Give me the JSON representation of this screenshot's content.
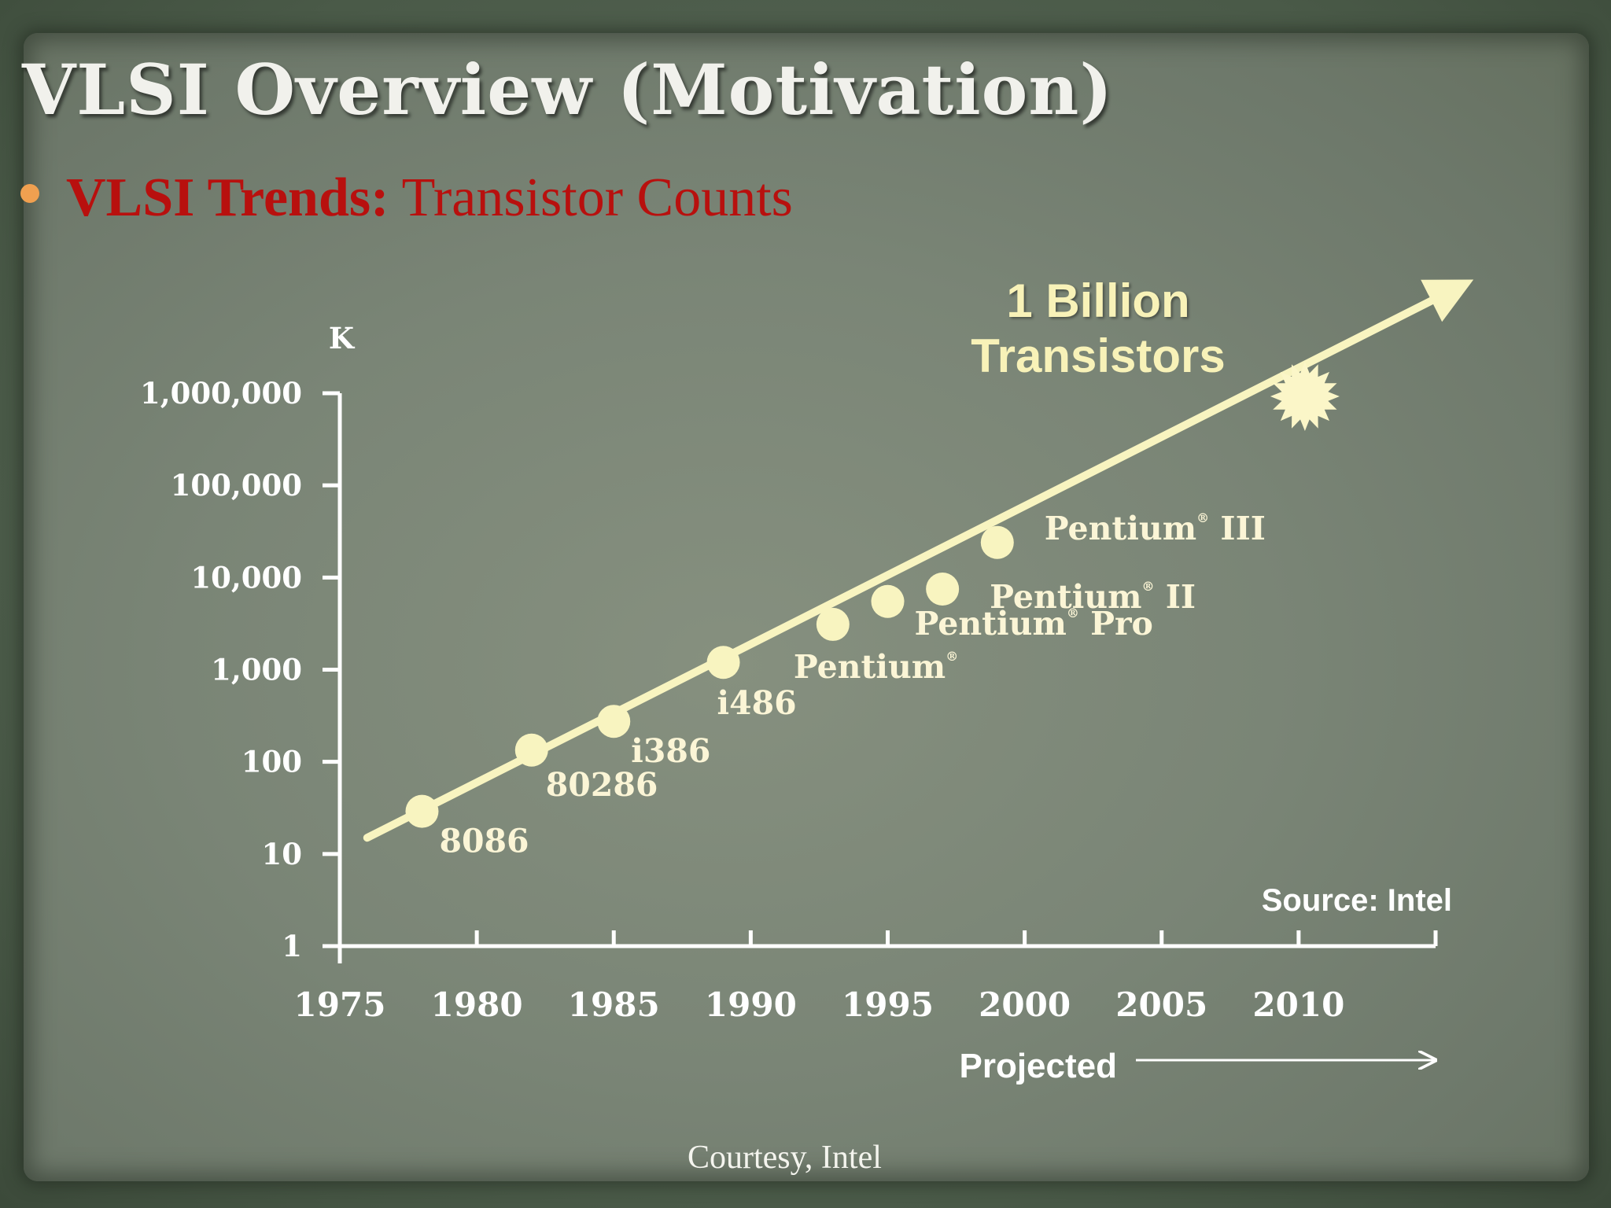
{
  "slide": {
    "title": "VLSI Overview (Motivation)",
    "bullet_strong": "VLSI Trends:",
    "bullet_text": " Transistor Counts",
    "courtesy": "Courtesy, Intel"
  },
  "colors": {
    "accent": "#b8100e",
    "bullet": "#f0a050",
    "trend": "#f8f4c0",
    "text": "#ffffff"
  },
  "chart_data": {
    "type": "scatter",
    "scale_y": "log",
    "unit_label": "K",
    "x_ticks": [
      "1975",
      "1980",
      "1985",
      "1990",
      "1995",
      "2000",
      "2005",
      "2010"
    ],
    "x_tick_values": [
      1975,
      1980,
      1985,
      1990,
      1995,
      2000,
      2005,
      2010
    ],
    "y_ticks": [
      "1",
      "10",
      "100",
      "1,000",
      "10,000",
      "100,000",
      "1,000,000"
    ],
    "y_tick_values": [
      1,
      10,
      100,
      1000,
      10000,
      100000,
      1000000
    ],
    "xlim": [
      1975,
      2015
    ],
    "ylim": [
      1,
      1000000
    ],
    "points": [
      {
        "label": "8086",
        "x": 1978,
        "y": 29
      },
      {
        "label": "80286",
        "x": 1982,
        "y": 134
      },
      {
        "label": "i386",
        "x": 1985,
        "y": 275
      },
      {
        "label": "i486",
        "x": 1989,
        "y": 1200
      },
      {
        "label": "Pentium",
        "reg": "®",
        "suffix": "",
        "x": 1993,
        "y": 3100
      },
      {
        "label": "Pentium",
        "reg": "®",
        "suffix": " Pro",
        "x": 1995,
        "y": 5500
      },
      {
        "label": "Pentium",
        "reg": "®",
        "suffix": " II",
        "x": 1997,
        "y": 7500
      },
      {
        "label": "Pentium",
        "reg": "®",
        "suffix": " III",
        "x": 1999,
        "y": 24000
      }
    ],
    "trend_line": {
      "start": [
        1976,
        15
      ],
      "end": [
        2016,
        15000000
      ]
    },
    "milestone": {
      "label_line1": "1 Billion",
      "label_line2": "Transistors",
      "x": 2010,
      "y": 1000000
    },
    "source": "Source:  Intel",
    "projected": "Projected"
  }
}
